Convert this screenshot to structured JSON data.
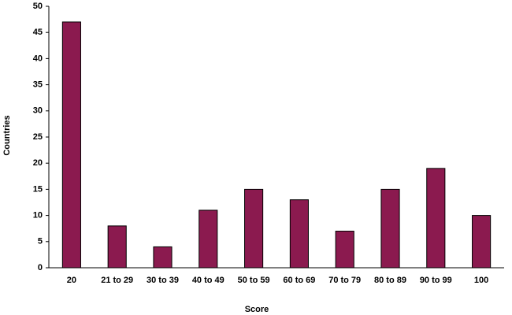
{
  "chart_data": {
    "type": "bar",
    "x_label": "Score",
    "y_label": "Countries",
    "categories": [
      "20",
      "21 to 29",
      "30 to 39",
      "40 to 49",
      "50 to 59",
      "60 to 69",
      "70 to 79",
      "80 to 89",
      "90 to 99",
      "100"
    ],
    "values": [
      47,
      8,
      4,
      11,
      15,
      13,
      7,
      15,
      19,
      10
    ],
    "color": "#8b1a4f",
    "ylim": [
      0,
      50
    ],
    "yticks": [
      0,
      5,
      10,
      15,
      20,
      25,
      30,
      35,
      40,
      45,
      50
    ],
    "grid": false
  }
}
